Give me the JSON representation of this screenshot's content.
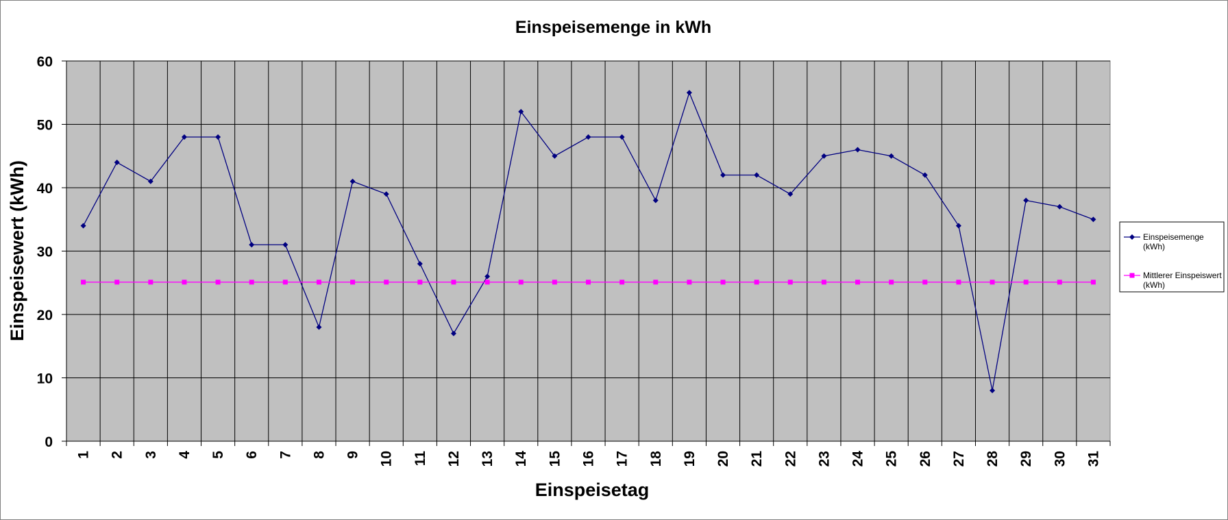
{
  "chart_data": {
    "type": "line",
    "title": "Einspeisemenge in kWh",
    "xlabel": "Einspeisetag",
    "ylabel": "Einspeisewert  (kWh)",
    "categories": [
      "1",
      "2",
      "3",
      "4",
      "5",
      "6",
      "7",
      "8",
      "9",
      "10",
      "11",
      "12",
      "13",
      "14",
      "15",
      "16",
      "17",
      "18",
      "19",
      "20",
      "21",
      "22",
      "23",
      "24",
      "25",
      "26",
      "27",
      "28",
      "29",
      "30",
      "31"
    ],
    "ylim": [
      0,
      60
    ],
    "yticks": [
      "0",
      "10",
      "20",
      "30",
      "40",
      "50",
      "60"
    ],
    "grid": true,
    "legend_position": "right",
    "plot_background": "#c0c0c0",
    "series": [
      {
        "name_lines": [
          "Einspeisemenge",
          "(kWh)"
        ],
        "color": "#000080",
        "marker": "diamond",
        "values": [
          34,
          44,
          41,
          48,
          48,
          31,
          31,
          18,
          41,
          39,
          28,
          17,
          26,
          52,
          45,
          48,
          48,
          38,
          55,
          42,
          42,
          39,
          45,
          46,
          45,
          42,
          34,
          8,
          38,
          37,
          35
        ]
      },
      {
        "name_lines": [
          "Mittlerer Einspeiswert",
          "(kWh)"
        ],
        "color": "#ff00ff",
        "marker": "square",
        "values": [
          25.1,
          25.1,
          25.1,
          25.1,
          25.1,
          25.1,
          25.1,
          25.1,
          25.1,
          25.1,
          25.1,
          25.1,
          25.1,
          25.1,
          25.1,
          25.1,
          25.1,
          25.1,
          25.1,
          25.1,
          25.1,
          25.1,
          25.1,
          25.1,
          25.1,
          25.1,
          25.1,
          25.1,
          25.1,
          25.1,
          25.1
        ]
      }
    ]
  }
}
